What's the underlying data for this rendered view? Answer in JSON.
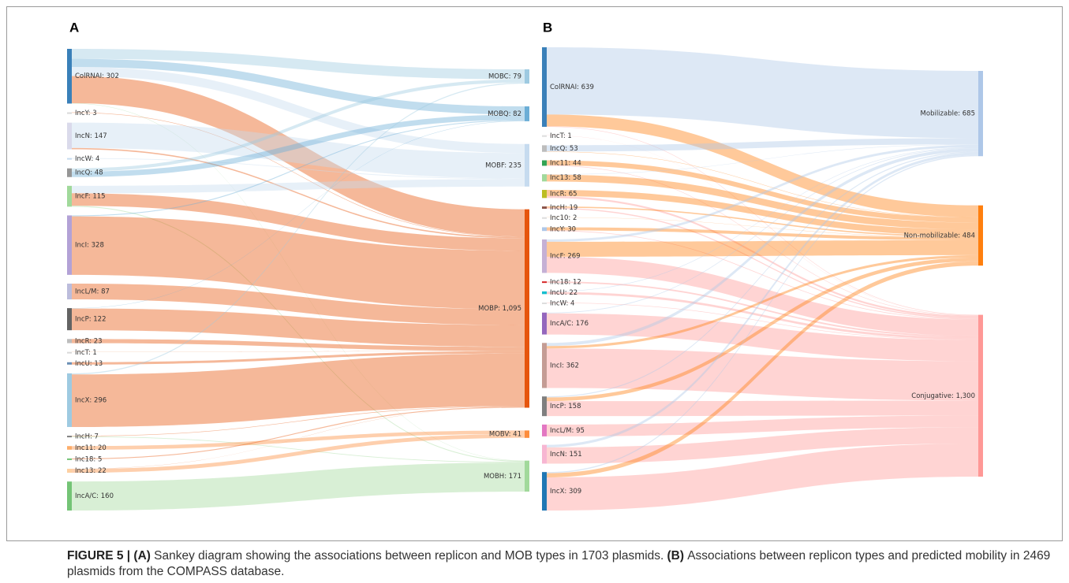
{
  "chart_data": [
    {
      "type": "sankey",
      "panel_label": "A",
      "targets": [
        {
          "label": "MOBC: 79",
          "value": 79,
          "color": "#9ecae1"
        },
        {
          "label": "MOBQ: 82",
          "value": 82,
          "color": "#6baed6"
        },
        {
          "label": "MOBF: 235",
          "value": 235,
          "color": "#c6dbef"
        },
        {
          "label": "MOBP: 1,095",
          "value": 1095,
          "color": "#e6550d"
        },
        {
          "label": "MOBV: 41",
          "value": 41,
          "color": "#fd8d3c"
        },
        {
          "label": "MOBH: 171",
          "value": 171,
          "color": "#a1d99b"
        }
      ],
      "sources": [
        {
          "label": "ColRNAI: 302",
          "value": 302,
          "color": "#3a80b9",
          "flows": [
            55,
            45,
            50,
            150,
            0,
            2
          ]
        },
        {
          "label": "IncY: 3",
          "value": 3,
          "color": "#d9d9d9",
          "flows": [
            0,
            0,
            0,
            3,
            0,
            0
          ]
        },
        {
          "label": "IncN: 147",
          "value": 147,
          "color": "#dadaeb",
          "flows": [
            0,
            0,
            140,
            7,
            0,
            0
          ]
        },
        {
          "label": "IncW: 4",
          "value": 4,
          "color": "#c6dbef",
          "flows": [
            0,
            0,
            4,
            0,
            0,
            0
          ]
        },
        {
          "label": "IncQ: 48",
          "value": 48,
          "color": "#969696",
          "flows": [
            18,
            30,
            0,
            0,
            0,
            0
          ]
        },
        {
          "label": "IncF: 115",
          "value": 115,
          "color": "#a1d99b",
          "flows": [
            0,
            0,
            41,
            69,
            0,
            5
          ]
        },
        {
          "label": "IncI: 328",
          "value": 328,
          "color": "#b3a2d6",
          "flows": [
            0,
            5,
            0,
            323,
            0,
            0
          ]
        },
        {
          "label": "IncL/M: 87",
          "value": 87,
          "color": "#bcbddc",
          "flows": [
            0,
            0,
            0,
            87,
            0,
            0
          ]
        },
        {
          "label": "IncP: 122",
          "value": 122,
          "color": "#636363",
          "flows": [
            0,
            2,
            0,
            120,
            0,
            0
          ]
        },
        {
          "label": "IncR: 23",
          "value": 23,
          "color": "#bdbdbd",
          "flows": [
            0,
            0,
            0,
            23,
            0,
            0
          ]
        },
        {
          "label": "IncT: 1",
          "value": 1,
          "color": "#d9d9d9",
          "flows": [
            0,
            0,
            0,
            1,
            0,
            0
          ]
        },
        {
          "label": "IncU: 13",
          "value": 13,
          "color": "#6b8fb5",
          "flows": [
            0,
            0,
            0,
            13,
            0,
            0
          ]
        },
        {
          "label": "IncX: 296",
          "value": 296,
          "color": "#9ecae1",
          "flows": [
            6,
            0,
            0,
            290,
            0,
            0
          ]
        },
        {
          "label": "IncH: 7",
          "value": 7,
          "color": "#7f7f7f",
          "flows": [
            0,
            0,
            0,
            3,
            0,
            4
          ]
        },
        {
          "label": "Inc11: 20",
          "value": 20,
          "color": "#fdae6b",
          "flows": [
            0,
            0,
            0,
            0,
            20,
            0
          ]
        },
        {
          "label": "Inc18: 5",
          "value": 5,
          "color": "#74c476",
          "flows": [
            0,
            0,
            0,
            5,
            0,
            0
          ]
        },
        {
          "label": "Inc13: 22",
          "value": 22,
          "color": "#fdd0a2",
          "flows": [
            0,
            0,
            0,
            1,
            21,
            0
          ]
        },
        {
          "label": "IncA/C: 160",
          "value": 160,
          "color": "#74c476",
          "flows": [
            0,
            0,
            0,
            0,
            0,
            160
          ]
        }
      ]
    },
    {
      "type": "sankey",
      "panel_label": "B",
      "targets": [
        {
          "label": "Mobilizable: 685",
          "value": 685,
          "color": "#aec7e8"
        },
        {
          "label": "Non-mobilizable: 484",
          "value": 484,
          "color": "#ff7f0e"
        },
        {
          "label": "Conjugative: 1,300",
          "value": 1300,
          "color": "#ff9896"
        }
      ],
      "sources": [
        {
          "label": "ColRNAI: 639",
          "value": 639,
          "color": "#3a80b9",
          "flows": [
            540,
            95,
            4
          ]
        },
        {
          "label": "IncT: 1",
          "value": 1,
          "color": "#dddddd",
          "flows": [
            0,
            0,
            1
          ]
        },
        {
          "label": "IncQ: 53",
          "value": 53,
          "color": "#bdbdbd",
          "flows": [
            50,
            3,
            0
          ]
        },
        {
          "label": "Inc11: 44",
          "value": 44,
          "color": "#31a354",
          "flows": [
            0,
            40,
            4
          ]
        },
        {
          "label": "Inc13: 58",
          "value": 58,
          "color": "#a1d99b",
          "flows": [
            3,
            55,
            0
          ]
        },
        {
          "label": "IncR: 65",
          "value": 65,
          "color": "#bcbd22",
          "flows": [
            0,
            50,
            15
          ]
        },
        {
          "label": "IncH: 19",
          "value": 19,
          "color": "#8c564b",
          "flows": [
            0,
            10,
            9
          ]
        },
        {
          "label": "Inc10: 2",
          "value": 2,
          "color": "#dddddd",
          "flows": [
            0,
            2,
            0
          ]
        },
        {
          "label": "IncY: 30",
          "value": 30,
          "color": "#aec7e8",
          "flows": [
            0,
            25,
            5
          ]
        },
        {
          "label": "IncF: 269",
          "value": 269,
          "color": "#c5b0d5",
          "flows": [
            19,
            120,
            130
          ]
        },
        {
          "label": "Inc18: 12",
          "value": 12,
          "color": "#d62728",
          "flows": [
            0,
            0,
            12
          ]
        },
        {
          "label": "IncU: 22",
          "value": 22,
          "color": "#17becf",
          "flows": [
            4,
            0,
            18
          ]
        },
        {
          "label": "IncW: 4",
          "value": 4,
          "color": "#dddddd",
          "flows": [
            0,
            0,
            4
          ]
        },
        {
          "label": "IncA/C: 176",
          "value": 176,
          "color": "#9467bd",
          "flows": [
            6,
            0,
            170
          ]
        },
        {
          "label": "IncI: 362",
          "value": 362,
          "color": "#c49c94",
          "flows": [
            25,
            20,
            317
          ]
        },
        {
          "label": "IncP: 158",
          "value": 158,
          "color": "#7f7f7f",
          "flows": [
            8,
            30,
            120
          ]
        },
        {
          "label": "IncL/M: 95",
          "value": 95,
          "color": "#e377c2",
          "flows": [
            0,
            0,
            95
          ]
        },
        {
          "label": "IncN: 151",
          "value": 151,
          "color": "#f7b6d2",
          "flows": [
            21,
            0,
            130
          ]
        },
        {
          "label": "IncX: 309",
          "value": 309,
          "color": "#1f77b4",
          "flows": [
            9,
            34,
            266
          ]
        }
      ]
    }
  ],
  "caption": {
    "parts": [
      {
        "text": "FIGURE 5 | (A)",
        "bold": true
      },
      {
        "text": "Sankey diagram showing the associations between replicon and MOB types in 1703 plasmids.",
        "bold": false
      },
      {
        "text": "(B)",
        "bold": true
      },
      {
        "text": "Associations between replicon types and predicted mobility in 2469 plasmids from the COMPASS database.",
        "bold": false
      }
    ]
  }
}
